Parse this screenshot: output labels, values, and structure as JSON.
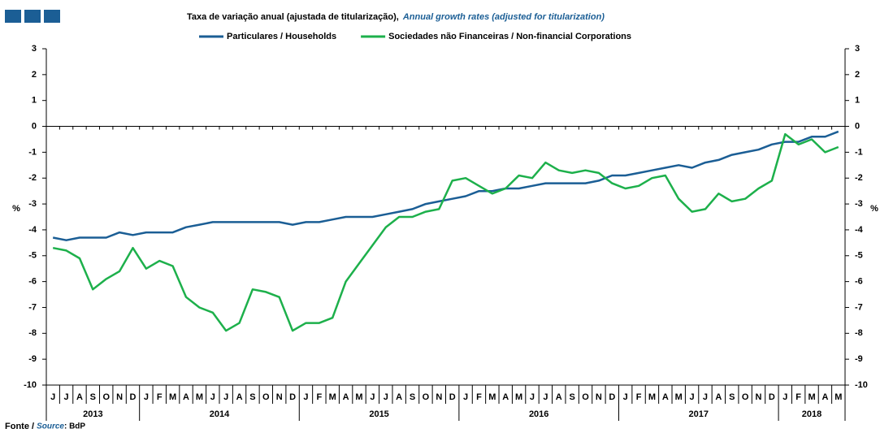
{
  "chart_data": {
    "type": "line",
    "title": "Taxa de variação anual (ajustada de titularização),",
    "title_en": "Annual growth rates (adjusted for titularization)",
    "y_label": "%",
    "y2_label": "%",
    "categories": [
      "J",
      "J",
      "A",
      "S",
      "O",
      "N",
      "D",
      "J",
      "F",
      "M",
      "A",
      "M",
      "J",
      "J",
      "A",
      "S",
      "O",
      "N",
      "D",
      "J",
      "F",
      "M",
      "A",
      "M",
      "J",
      "J",
      "A",
      "S",
      "O",
      "N",
      "D",
      "J",
      "F",
      "M",
      "A",
      "M",
      "J",
      "J",
      "A",
      "S",
      "O",
      "N",
      "D",
      "J",
      "F",
      "M",
      "A",
      "M",
      "J",
      "J",
      "A",
      "S",
      "O",
      "N",
      "D",
      "J",
      "F",
      "M",
      "A",
      "M"
    ],
    "years": [
      "2013",
      "2014",
      "2015",
      "2016",
      "2017",
      "2018"
    ],
    "series": [
      {
        "name": "Particulares / Households",
        "color": "#1b5e95",
        "values": [
          -4.3,
          -4.4,
          -4.3,
          -4.3,
          -4.3,
          -4.1,
          -4.2,
          -4.1,
          -4.1,
          -4.1,
          -3.9,
          -3.8,
          -3.7,
          -3.7,
          -3.7,
          -3.7,
          -3.7,
          -3.7,
          -3.8,
          -3.7,
          -3.7,
          -3.6,
          -3.5,
          -3.5,
          -3.5,
          -3.4,
          -3.3,
          -3.2,
          -3.0,
          -2.9,
          -2.8,
          -2.7,
          -2.5,
          -2.5,
          -2.4,
          -2.4,
          -2.3,
          -2.2,
          -2.2,
          -2.2,
          -2.2,
          -2.1,
          -1.9,
          -1.9,
          -1.8,
          -1.7,
          -1.6,
          -1.5,
          -1.6,
          -1.4,
          -1.3,
          -1.1,
          -1.0,
          -0.9,
          -0.7,
          -0.6,
          -0.6,
          -0.4,
          -0.4,
          -0.2
        ]
      },
      {
        "name": "Sociedades não Financeiras / Non-financial Corporations",
        "color": "#1db04b",
        "values": [
          -4.7,
          -4.8,
          -5.1,
          -6.3,
          -5.9,
          -5.6,
          -4.7,
          -5.5,
          -5.2,
          -5.4,
          -6.6,
          -7.0,
          -7.2,
          -7.9,
          -7.6,
          -6.3,
          -6.4,
          -6.6,
          -7.9,
          -7.6,
          -7.6,
          -7.4,
          -6.0,
          -5.3,
          -4.6,
          -3.9,
          -3.5,
          -3.5,
          -3.3,
          -3.2,
          -2.1,
          -2.0,
          -2.3,
          -2.6,
          -2.4,
          -1.9,
          -2.0,
          -1.4,
          -1.7,
          -1.8,
          -1.7,
          -1.8,
          -2.2,
          -2.4,
          -2.3,
          -2.0,
          -1.9,
          -2.8,
          -3.3,
          -3.2,
          -2.6,
          -2.9,
          -2.8,
          -2.4,
          -2.1,
          -0.3,
          -0.7,
          -0.5,
          -1.0,
          -0.8
        ]
      }
    ],
    "ylim": [
      -10,
      3
    ],
    "yticks": [
      -10,
      -9,
      -8,
      -7,
      -6,
      -5,
      -4,
      -3,
      -2,
      -1,
      0,
      1,
      2,
      3
    ],
    "y2lim": [
      -10,
      3
    ],
    "y2ticks": [
      -10,
      -9,
      -8,
      -7,
      -6,
      -5,
      -4,
      -3,
      -2,
      -1,
      0,
      1,
      2,
      3
    ],
    "grid": false,
    "source_pt": "Fonte /",
    "source_en": "Source",
    "source": ": BdP"
  }
}
